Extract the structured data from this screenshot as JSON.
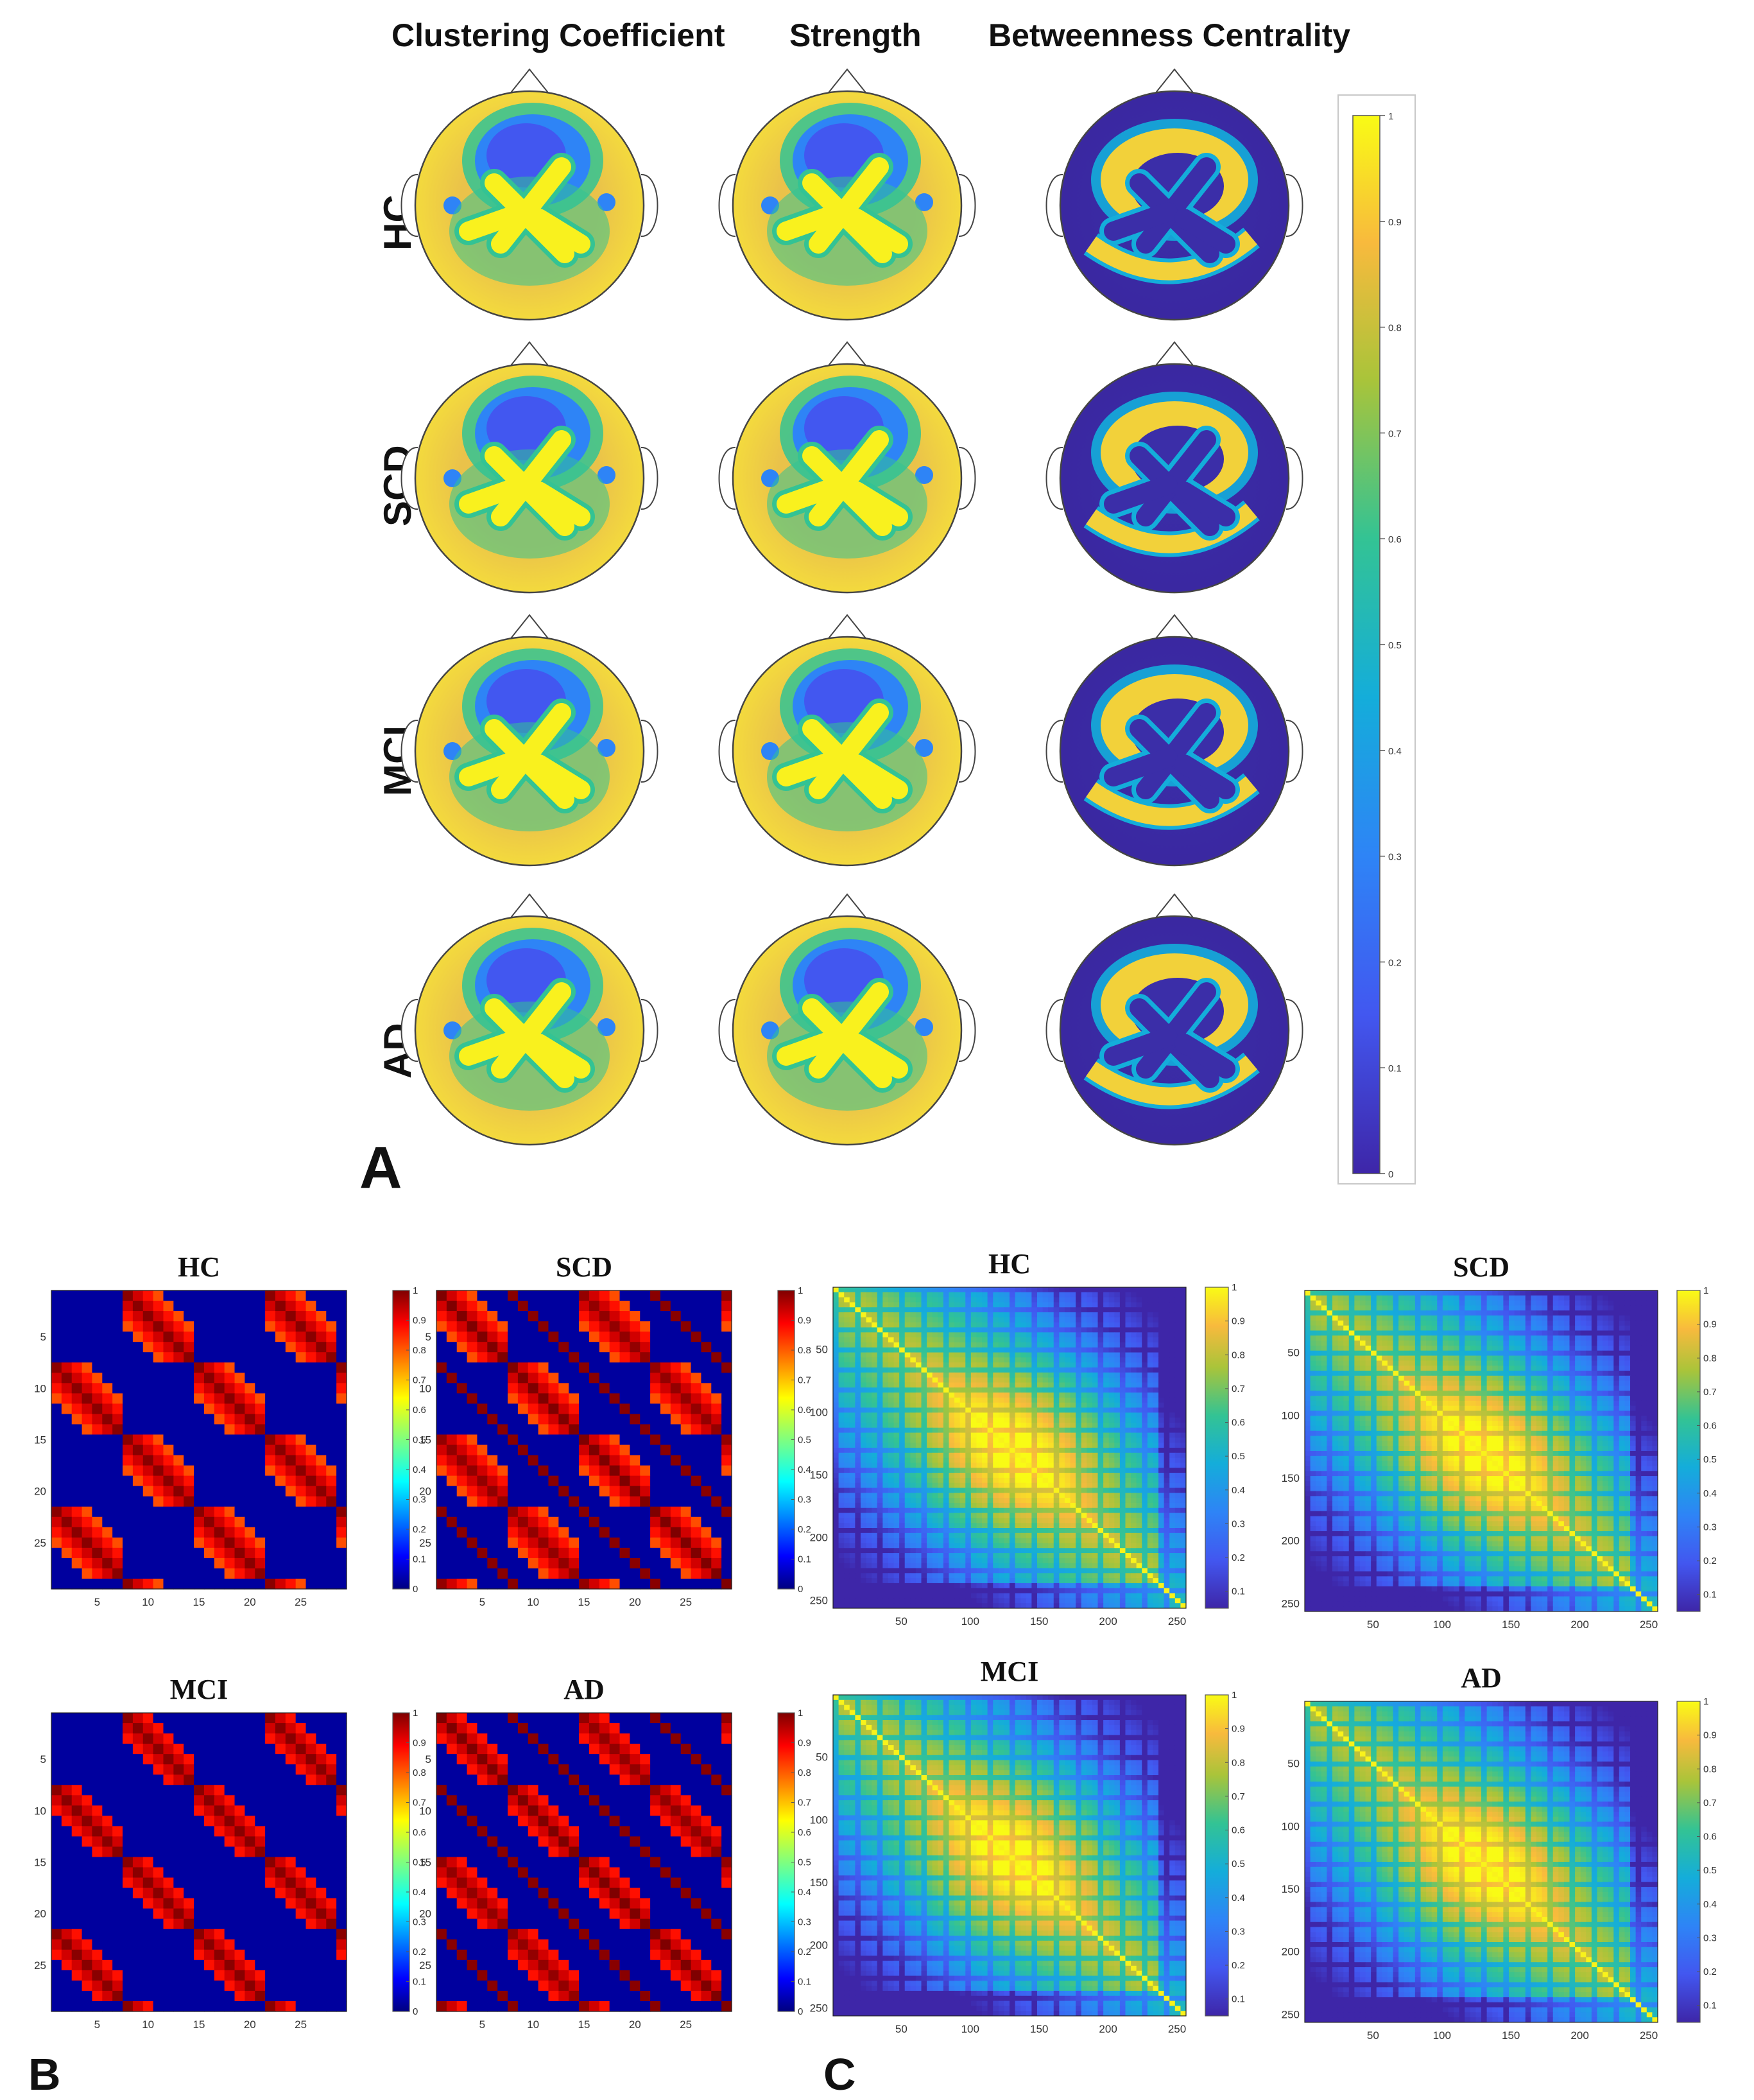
{
  "panel_a": {
    "label": "A",
    "column_headers": [
      "Clustering  Coefficient",
      "Strength",
      "Betweenness Centrality"
    ],
    "row_labels": [
      "HC",
      "SCD",
      "MCI",
      "AD"
    ],
    "colorbar_ticks": [
      "0",
      "0.1",
      "0.2",
      "0.3",
      "0.4",
      "0.5",
      "0.6",
      "0.7",
      "0.8",
      "0.9",
      "1"
    ],
    "colormap": "parula",
    "low_color": "#3e26a8",
    "high_color": "#f9fb15"
  },
  "panel_b": {
    "label": "B",
    "titles": [
      "HC",
      "SCD",
      "MCI",
      "AD"
    ],
    "colormap": "jet",
    "x_ticks": [
      "5",
      "10",
      "15",
      "20",
      "25"
    ],
    "y_ticks": [
      "5",
      "10",
      "15",
      "20",
      "25"
    ],
    "colorbar_ticks": [
      "0",
      "0.1",
      "0.2",
      "0.3",
      "0.4",
      "0.5",
      "0.6",
      "0.7",
      "0.8",
      "0.9",
      "1"
    ]
  },
  "panel_c": {
    "label": "C",
    "titles": [
      "HC",
      "SCD",
      "MCI",
      "AD"
    ],
    "colormap": "parula",
    "x_ticks": [
      "50",
      "100",
      "150",
      "200",
      "250"
    ],
    "y_ticks": [
      "50",
      "100",
      "150",
      "200",
      "250"
    ],
    "colorbar_ticks": [
      "0.1",
      "0.2",
      "0.3",
      "0.4",
      "0.5",
      "0.6",
      "0.7",
      "0.8",
      "0.9",
      "1"
    ]
  },
  "chart_data": [
    {
      "type": "heatmap",
      "panel": "B",
      "title": "HC",
      "size": 29,
      "xlim": [
        1,
        29
      ],
      "ylim": [
        1,
        29
      ],
      "colormap": "jet",
      "clim": [
        0,
        1
      ]
    },
    {
      "type": "heatmap",
      "panel": "B",
      "title": "SCD",
      "size": 29,
      "xlim": [
        1,
        29
      ],
      "ylim": [
        1,
        29
      ],
      "colormap": "jet",
      "clim": [
        0,
        1
      ]
    },
    {
      "type": "heatmap",
      "panel": "B",
      "title": "MCI",
      "size": 29,
      "xlim": [
        1,
        29
      ],
      "ylim": [
        1,
        29
      ],
      "colormap": "jet",
      "clim": [
        0,
        1
      ]
    },
    {
      "type": "heatmap",
      "panel": "B",
      "title": "AD",
      "size": 29,
      "xlim": [
        1,
        29
      ],
      "ylim": [
        1,
        29
      ],
      "colormap": "jet",
      "clim": [
        0,
        1
      ]
    },
    {
      "type": "heatmap",
      "panel": "C",
      "title": "HC",
      "size": 256,
      "xlim": [
        1,
        256
      ],
      "ylim": [
        1,
        256
      ],
      "colormap": "parula",
      "clim": [
        0.05,
        1
      ]
    },
    {
      "type": "heatmap",
      "panel": "C",
      "title": "SCD",
      "size": 256,
      "xlim": [
        1,
        256
      ],
      "ylim": [
        1,
        256
      ],
      "colormap": "parula",
      "clim": [
        0.05,
        1
      ]
    },
    {
      "type": "heatmap",
      "panel": "C",
      "title": "MCI",
      "size": 256,
      "xlim": [
        1,
        256
      ],
      "ylim": [
        1,
        256
      ],
      "colormap": "parula",
      "clim": [
        0.05,
        1
      ]
    },
    {
      "type": "heatmap",
      "panel": "C",
      "title": "AD",
      "size": 256,
      "xlim": [
        1,
        256
      ],
      "ylim": [
        1,
        256
      ],
      "colormap": "parula",
      "clim": [
        0.05,
        1
      ]
    }
  ]
}
